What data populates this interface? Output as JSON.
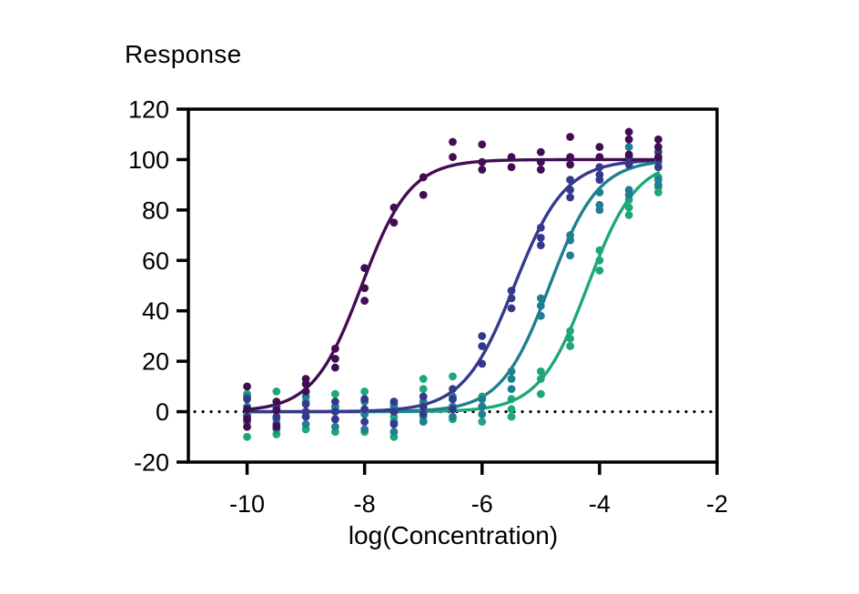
{
  "page": {
    "background": "#ffffff",
    "text_color": "#000000"
  },
  "chart_data": {
    "type": "scatter",
    "subtype": "dose-response scatter with sigmoidal fit curves",
    "title": "Response",
    "xlabel": "log(Concentration)",
    "ylabel": "",
    "xlim": [
      -11,
      -2
    ],
    "ylim": [
      -20,
      120
    ],
    "x_ticks": [
      -10,
      -8,
      -6,
      -4,
      -2
    ],
    "y_ticks": [
      120,
      100,
      80,
      60,
      40,
      20,
      0,
      -20
    ],
    "grid": false,
    "legend": "none",
    "frame": true,
    "frame_color": "#000000",
    "zero_line": {
      "y": 0,
      "style": "dotted",
      "color": "#000000"
    },
    "series": [
      {
        "name": "green",
        "color": "#1ea87a",
        "fit": {
          "bottom": 0,
          "top": 100,
          "logec50": -4.2,
          "hill": 1.05,
          "x_start": -10,
          "x_end": -3
        },
        "points": [
          [
            -10,
            7
          ],
          [
            -10,
            -1
          ],
          [
            -10,
            -10
          ],
          [
            -9.5,
            8
          ],
          [
            -9.5,
            2
          ],
          [
            -9.5,
            -9
          ],
          [
            -9,
            4
          ],
          [
            -9,
            -2
          ],
          [
            -9,
            -7
          ],
          [
            -8.5,
            7
          ],
          [
            -8.5,
            1
          ],
          [
            -8.5,
            -8
          ],
          [
            -8,
            8
          ],
          [
            -8,
            0
          ],
          [
            -8,
            -8
          ],
          [
            -7.5,
            3
          ],
          [
            -7.5,
            -2
          ],
          [
            -7.5,
            -10
          ],
          [
            -7,
            13
          ],
          [
            -7,
            9
          ],
          [
            -7,
            -2
          ],
          [
            -6.5,
            14
          ],
          [
            -6.5,
            5
          ],
          [
            -6.5,
            -3
          ],
          [
            -6,
            6
          ],
          [
            -6,
            2
          ],
          [
            -6,
            -4
          ],
          [
            -5.5,
            5
          ],
          [
            -5.5,
            1
          ],
          [
            -5.5,
            -2
          ],
          [
            -5,
            16
          ],
          [
            -5,
            13
          ],
          [
            -5,
            7
          ],
          [
            -4.5,
            32
          ],
          [
            -4.5,
            29
          ],
          [
            -4.5,
            26
          ],
          [
            -4,
            64
          ],
          [
            -4,
            60
          ],
          [
            -4,
            56
          ],
          [
            -3.5,
            84
          ],
          [
            -3.5,
            81
          ],
          [
            -3.5,
            78
          ],
          [
            -3,
            93
          ],
          [
            -3,
            89
          ],
          [
            -3,
            87
          ]
        ]
      },
      {
        "name": "teal",
        "color": "#1f7f90",
        "fit": {
          "bottom": 0,
          "top": 100,
          "logec50": -4.85,
          "hill": 1.05,
          "x_start": -10,
          "x_end": -3
        },
        "points": [
          [
            -10,
            6
          ],
          [
            -10,
            2
          ],
          [
            -10,
            -4
          ],
          [
            -9.5,
            1
          ],
          [
            -9.5,
            -3
          ],
          [
            -9.5,
            -7
          ],
          [
            -9,
            6
          ],
          [
            -9,
            0
          ],
          [
            -9,
            -5
          ],
          [
            -8.5,
            2
          ],
          [
            -8.5,
            -3
          ],
          [
            -8.5,
            -6
          ],
          [
            -8,
            4
          ],
          [
            -8,
            -1
          ],
          [
            -8,
            -7
          ],
          [
            -7.5,
            2
          ],
          [
            -7.5,
            -4
          ],
          [
            -7.5,
            -8
          ],
          [
            -7,
            4
          ],
          [
            -7,
            0
          ],
          [
            -7,
            -4
          ],
          [
            -6.5,
            6
          ],
          [
            -6.5,
            2
          ],
          [
            -6.5,
            -2
          ],
          [
            -6,
            5
          ],
          [
            -6,
            2
          ],
          [
            -6,
            -1
          ],
          [
            -5.5,
            16
          ],
          [
            -5.5,
            13
          ],
          [
            -5.5,
            9
          ],
          [
            -5,
            45
          ],
          [
            -5,
            42
          ],
          [
            -5,
            38
          ],
          [
            -4.5,
            70
          ],
          [
            -4.5,
            68
          ],
          [
            -4.5,
            62
          ],
          [
            -4,
            87
          ],
          [
            -4,
            82
          ],
          [
            -4,
            80
          ],
          [
            -3.5,
            105
          ],
          [
            -3.5,
            88
          ],
          [
            -3.5,
            86
          ],
          [
            -3,
            99
          ],
          [
            -3,
            92
          ],
          [
            -3,
            90
          ]
        ]
      },
      {
        "name": "blue",
        "color": "#35398c",
        "fit": {
          "bottom": 0,
          "top": 100,
          "logec50": -5.45,
          "hill": 1.0,
          "x_start": -10,
          "x_end": -3
        },
        "points": [
          [
            -10,
            5
          ],
          [
            -10,
            1
          ],
          [
            -10,
            -2
          ],
          [
            -9.5,
            2
          ],
          [
            -9.5,
            -2
          ],
          [
            -9.5,
            -5
          ],
          [
            -9,
            3
          ],
          [
            -9,
            0
          ],
          [
            -9,
            -2
          ],
          [
            -8.5,
            4
          ],
          [
            -8.5,
            0
          ],
          [
            -8.5,
            -3
          ],
          [
            -8,
            5
          ],
          [
            -8,
            1
          ],
          [
            -8,
            -4
          ],
          [
            -7.5,
            4
          ],
          [
            -7.5,
            0
          ],
          [
            -7.5,
            -5
          ],
          [
            -7,
            6
          ],
          [
            -7,
            2
          ],
          [
            -7,
            -1
          ],
          [
            -6.5,
            9
          ],
          [
            -6.5,
            5
          ],
          [
            -6.5,
            1
          ],
          [
            -6,
            30
          ],
          [
            -6,
            26
          ],
          [
            -6,
            19
          ],
          [
            -5.5,
            48
          ],
          [
            -5.5,
            45
          ],
          [
            -5.5,
            41
          ],
          [
            -5,
            73
          ],
          [
            -5,
            69
          ],
          [
            -5,
            66
          ],
          [
            -4.5,
            92
          ],
          [
            -4.5,
            88
          ],
          [
            -4.5,
            85
          ],
          [
            -4,
            97
          ],
          [
            -4,
            94
          ],
          [
            -4,
            92
          ],
          [
            -3.5,
            101
          ],
          [
            -3.5,
            98
          ],
          [
            -3,
            103
          ],
          [
            -3,
            100
          ],
          [
            -3,
            97
          ]
        ]
      },
      {
        "name": "purple",
        "color": "#430d54",
        "fit": {
          "bottom": 0,
          "top": 100,
          "logec50": -8.05,
          "hill": 1.05,
          "x_start": -10,
          "x_end": -3
        },
        "points": [
          [
            -10,
            10
          ],
          [
            -10,
            1
          ],
          [
            -10,
            -3
          ],
          [
            -10,
            -6
          ],
          [
            -9.5,
            4
          ],
          [
            -9.5,
            0.5
          ],
          [
            -9.5,
            -6
          ],
          [
            -9,
            13
          ],
          [
            -9,
            11
          ],
          [
            -9,
            8
          ],
          [
            -8.5,
            25
          ],
          [
            -8.5,
            21
          ],
          [
            -8.5,
            17.5
          ],
          [
            -8,
            57
          ],
          [
            -8,
            49
          ],
          [
            -8,
            44
          ],
          [
            -7.5,
            81
          ],
          [
            -7.5,
            75
          ],
          [
            -7,
            93
          ],
          [
            -7,
            86
          ],
          [
            -6.5,
            107
          ],
          [
            -6.5,
            101
          ],
          [
            -6,
            106
          ],
          [
            -6,
            99
          ],
          [
            -6,
            96
          ],
          [
            -5.5,
            101
          ],
          [
            -5.5,
            97
          ],
          [
            -5,
            103
          ],
          [
            -5,
            99
          ],
          [
            -5,
            96
          ],
          [
            -4.5,
            109
          ],
          [
            -4.5,
            101
          ],
          [
            -4.5,
            98
          ],
          [
            -4,
            105
          ],
          [
            -4,
            101
          ],
          [
            -3.5,
            111
          ],
          [
            -3.5,
            108
          ],
          [
            -3.5,
            102
          ],
          [
            -3,
            108
          ],
          [
            -3,
            105
          ],
          [
            -3,
            101
          ]
        ]
      }
    ]
  }
}
